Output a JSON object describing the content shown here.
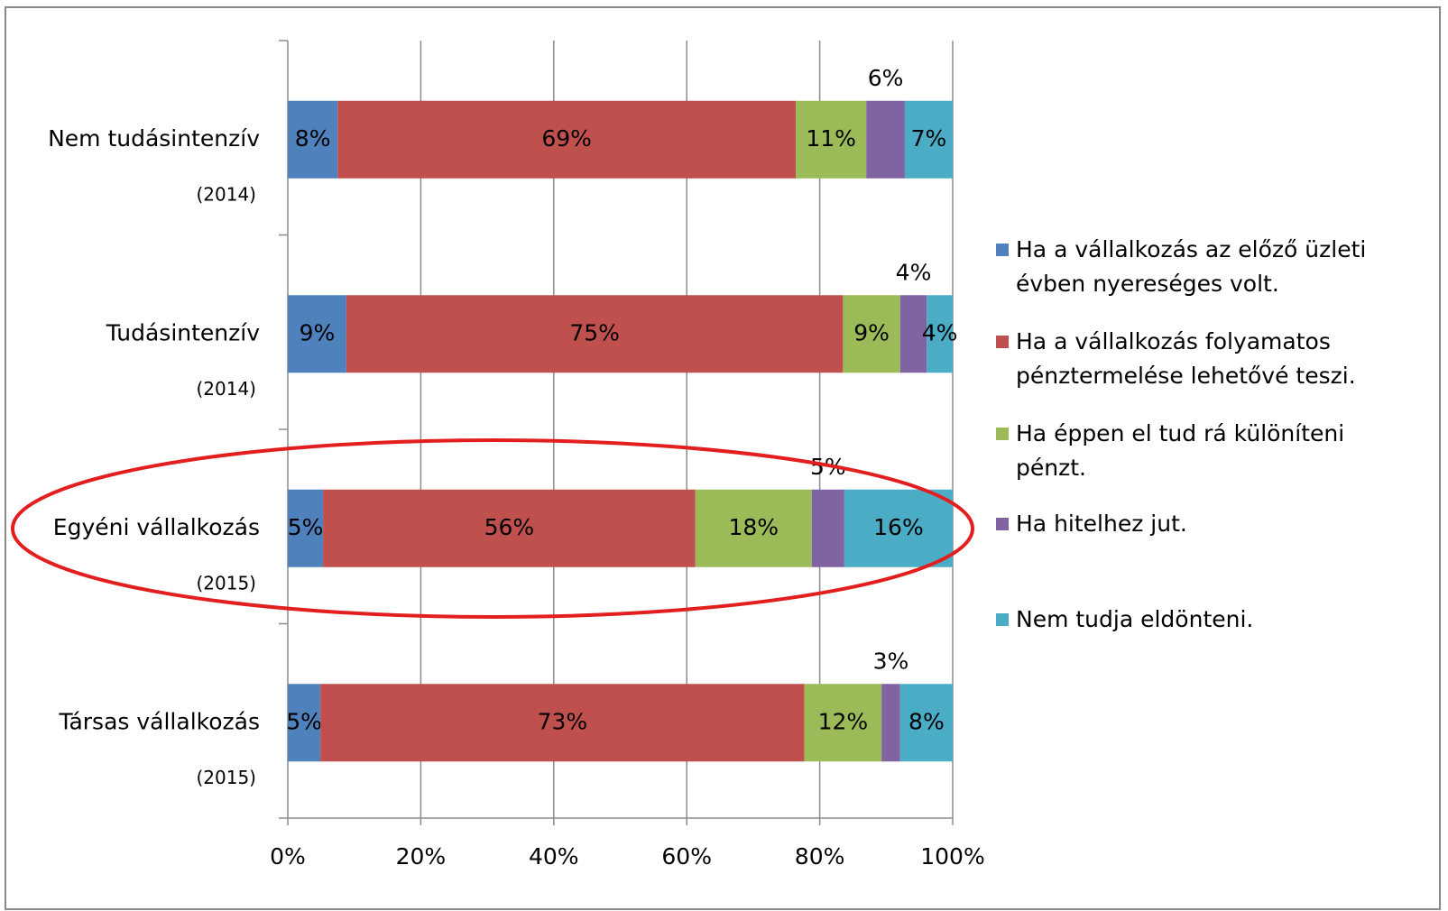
{
  "chart_data": {
    "type": "stacked_barh",
    "categories": [
      "Nem tudásintenzív",
      "Tudásintenzív",
      "Egyéni vállalkozás",
      "Társas vállalkozás"
    ],
    "category_years": [
      "(2014)",
      "(2014)",
      "(2015)",
      "(2015)"
    ],
    "series": [
      {
        "name": "Ha a vállalkozás az előző üzleti évben nyereséges volt.",
        "color": "#4f81bd",
        "values": [
          7.5,
          8.8,
          5.3,
          4.9
        ],
        "value_labels": [
          "8%",
          "9%",
          "5%",
          "5%"
        ]
      },
      {
        "name": "Ha a vállalkozás folyamatos pénztermelése lehetővé teszi.",
        "color": "#c0504d",
        "values": [
          68.9,
          74.7,
          56,
          72.8
        ],
        "value_labels": [
          "69%",
          "75%",
          "56%",
          "73%"
        ]
      },
      {
        "name": "Ha éppen el tud rá különíteni pénzt.",
        "color": "#9bbb59",
        "values": [
          10.6,
          8.6,
          17.5,
          11.6
        ],
        "value_labels": [
          "11%",
          "9%",
          "18%",
          "12%"
        ]
      },
      {
        "name": "Ha hitelhez jut.",
        "color": "#8064a2",
        "values": [
          5.8,
          4,
          4.9,
          2.8
        ],
        "value_labels": [
          "6%",
          "4%",
          "5%",
          "3%"
        ]
      },
      {
        "name": "Nem tudja eldönteni.",
        "color": "#4bacc6",
        "values": [
          7.2,
          3.9,
          16.3,
          7.9
        ],
        "value_labels": [
          "7%",
          "4%",
          "16%",
          "8%"
        ]
      }
    ],
    "xlim": [
      0,
      100
    ],
    "xticks": [
      {
        "value": 0,
        "label": "0%"
      },
      {
        "value": 20,
        "label": "20%"
      },
      {
        "value": 40,
        "label": "40%"
      },
      {
        "value": 60,
        "label": "60%"
      },
      {
        "value": 80,
        "label": "80%"
      },
      {
        "value": 100,
        "label": "100%"
      }
    ],
    "grid": true
  }
}
